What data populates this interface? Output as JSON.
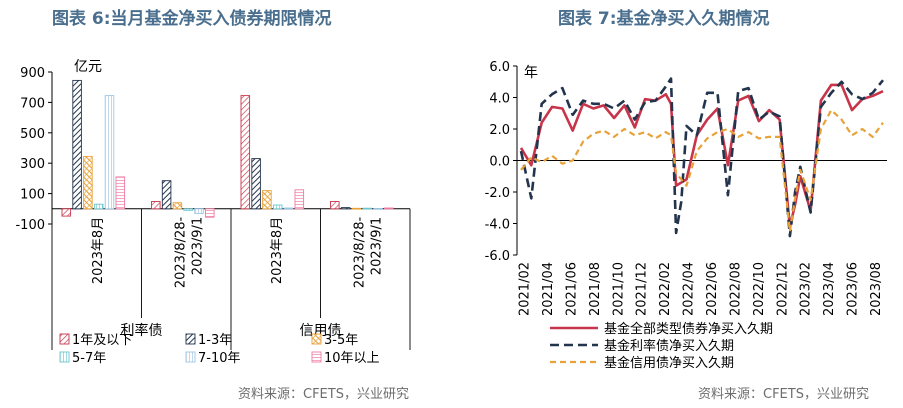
{
  "chart_data": [
    {
      "type": "bar",
      "title": "图表 6:当月基金净买入债券期限情况",
      "unit": "亿元",
      "ylim": [
        -100,
        900
      ],
      "yticks": [
        -100,
        100,
        300,
        500,
        700,
        900
      ],
      "groups": [
        {
          "name": "利率债",
          "categories": [
            "2023年8月",
            "2023/8/28-2023/9/1"
          ]
        },
        {
          "name": "信用债",
          "categories": [
            "2023年8月",
            "2023/8/28-2023/9/1"
          ]
        }
      ],
      "series": [
        {
          "name": "1年及以下",
          "color": "#c8344a",
          "values": [
            -48,
            48,
            745,
            48
          ]
        },
        {
          "name": "1-3年",
          "color": "#23344d",
          "values": [
            845,
            185,
            330,
            8
          ]
        },
        {
          "name": "3-5年",
          "color": "#e8a23a",
          "values": [
            345,
            40,
            120,
            3
          ]
        },
        {
          "name": "5-7年",
          "color": "#6cc6cf",
          "values": [
            30,
            -10,
            25,
            4
          ]
        },
        {
          "name": "7-10年",
          "color": "#9ec6e3",
          "values": [
            745,
            -30,
            5,
            2
          ]
        },
        {
          "name": "10年以上",
          "color": "#ef7aa0",
          "values": [
            210,
            -55,
            125,
            5
          ]
        }
      ],
      "legend_position": "bottom"
    },
    {
      "type": "line",
      "title": "图表 7:基金净买入久期情况",
      "unit": "年",
      "ylim": [
        -6.0,
        6.0
      ],
      "yticks": [
        "6.0",
        "4.0",
        "2.0",
        "0.0",
        "-2.0",
        "-4.0",
        "-6.0"
      ],
      "x_tick_labels": [
        "2021/02",
        "2021/04",
        "2021/06",
        "2021/08",
        "2021/10",
        "2021/12",
        "2022/02",
        "2022/04",
        "2022/06",
        "2022/08",
        "2022/10",
        "2022/12",
        "2023/02",
        "2023/04",
        "2023/06",
        "2023/08"
      ],
      "series": [
        {
          "name": "基金全部类型债券净买入久期",
          "color": "#c8344a",
          "style": "solid",
          "values": [
            [
              0,
              0.8
            ],
            [
              2,
              -0.3
            ],
            [
              4,
              2.4
            ],
            [
              6,
              3.4
            ],
            [
              8,
              3.3
            ],
            [
              10,
              1.9
            ],
            [
              12,
              3.6
            ],
            [
              14,
              3.3
            ],
            [
              16,
              3.5
            ],
            [
              18,
              2.7
            ],
            [
              20,
              3.5
            ],
            [
              22,
              2.1
            ],
            [
              24,
              3.9
            ],
            [
              26,
              3.8
            ],
            [
              28,
              4.2
            ],
            [
              29,
              3.6
            ],
            [
              30,
              -1.6
            ],
            [
              32,
              -1.2
            ],
            [
              34,
              1.6
            ],
            [
              36,
              2.6
            ],
            [
              38,
              3.3
            ],
            [
              40,
              -0.3
            ],
            [
              42,
              3.8
            ],
            [
              44,
              4.1
            ],
            [
              46,
              2.5
            ],
            [
              48,
              3.2
            ],
            [
              50,
              2.6
            ],
            [
              52,
              -4.2
            ],
            [
              53,
              -2.8
            ],
            [
              54,
              -1.0
            ],
            [
              56,
              -3.2
            ],
            [
              58,
              3.8
            ],
            [
              60,
              4.8
            ],
            [
              62,
              4.8
            ],
            [
              64,
              3.2
            ],
            [
              66,
              3.9
            ],
            [
              68,
              4.1
            ],
            [
              70,
              4.4
            ]
          ]
        },
        {
          "name": "基金利率债净买入久期",
          "color": "#23344d",
          "style": "dashed",
          "values": [
            [
              0,
              0.6
            ],
            [
              2,
              -2.4
            ],
            [
              4,
              3.6
            ],
            [
              6,
              4.2
            ],
            [
              8,
              4.6
            ],
            [
              10,
              2.9
            ],
            [
              12,
              3.8
            ],
            [
              14,
              3.6
            ],
            [
              16,
              3.6
            ],
            [
              18,
              3.3
            ],
            [
              20,
              3.8
            ],
            [
              22,
              2.6
            ],
            [
              24,
              3.7
            ],
            [
              26,
              3.8
            ],
            [
              28,
              4.7
            ],
            [
              29,
              5.2
            ],
            [
              30,
              -4.6
            ],
            [
              31,
              -2.6
            ],
            [
              32,
              2.2
            ],
            [
              34,
              1.6
            ],
            [
              36,
              4.3
            ],
            [
              38,
              4.3
            ],
            [
              40,
              -2.2
            ],
            [
              42,
              4.4
            ],
            [
              44,
              4.6
            ],
            [
              46,
              2.6
            ],
            [
              48,
              3.1
            ],
            [
              50,
              2.8
            ],
            [
              52,
              -4.8
            ],
            [
              53,
              -2.0
            ],
            [
              54,
              -0.4
            ],
            [
              56,
              -3.3
            ],
            [
              58,
              3.4
            ],
            [
              60,
              4.3
            ],
            [
              62,
              5.0
            ],
            [
              64,
              4.2
            ],
            [
              66,
              3.9
            ],
            [
              68,
              4.3
            ],
            [
              70,
              5.1
            ]
          ]
        },
        {
          "name": "基金信用债净买入久期",
          "color": "#e8a23a",
          "style": "dashed",
          "values": [
            [
              0,
              -0.6
            ],
            [
              2,
              0.2
            ],
            [
              4,
              -0.1
            ],
            [
              6,
              0.3
            ],
            [
              8,
              -0.2
            ],
            [
              10,
              0.0
            ],
            [
              12,
              1.2
            ],
            [
              14,
              1.7
            ],
            [
              16,
              1.9
            ],
            [
              18,
              1.5
            ],
            [
              20,
              2.0
            ],
            [
              22,
              1.6
            ],
            [
              24,
              1.8
            ],
            [
              26,
              1.4
            ],
            [
              28,
              1.8
            ],
            [
              29,
              1.6
            ],
            [
              30,
              -0.8
            ],
            [
              32,
              -1.6
            ],
            [
              34,
              0.6
            ],
            [
              36,
              1.4
            ],
            [
              38,
              1.8
            ],
            [
              40,
              2.0
            ],
            [
              42,
              1.5
            ],
            [
              44,
              1.8
            ],
            [
              46,
              1.4
            ],
            [
              48,
              1.5
            ],
            [
              50,
              1.5
            ],
            [
              52,
              -4.5
            ],
            [
              53,
              -2.4
            ],
            [
              54,
              -0.6
            ],
            [
              56,
              -2.5
            ],
            [
              58,
              2.0
            ],
            [
              60,
              3.2
            ],
            [
              62,
              2.6
            ],
            [
              64,
              1.6
            ],
            [
              66,
              2.0
            ],
            [
              68,
              1.5
            ],
            [
              70,
              2.4
            ]
          ]
        }
      ],
      "legend_position": "bottom"
    }
  ],
  "source_left": "资料来源：CFETS，兴业研究",
  "source_right": "资料来源：CFETS，兴业研究"
}
